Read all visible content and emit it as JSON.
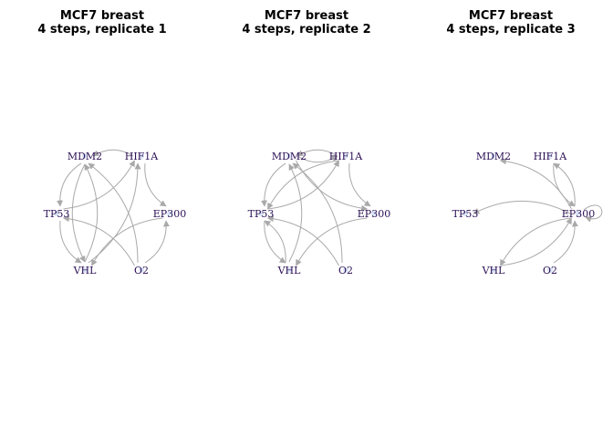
{
  "colors": {
    "edge": "#a9a9a9",
    "arrow": "#a9a9a9",
    "label": "#2b1055",
    "node": "#b8ccf0"
  },
  "panels": [
    {
      "title_line1": "MCF7 breast",
      "title_line2": "4 steps, replicate 1",
      "edges": [
        [
          "HIF1A",
          "MDM2"
        ],
        [
          "O2",
          "MDM2"
        ],
        [
          "VHL",
          "MDM2"
        ],
        [
          "HIF1A",
          "EP300"
        ],
        [
          "TP53",
          "HIF1A"
        ],
        [
          "VHL",
          "HIF1A"
        ],
        [
          "MDM2",
          "TP53"
        ],
        [
          "O2",
          "TP53"
        ],
        [
          "TP53",
          "VHL"
        ],
        [
          "MDM2",
          "VHL"
        ],
        [
          "EP300",
          "VHL"
        ],
        [
          "O2",
          "EP300"
        ]
      ]
    },
    {
      "title_line1": "MCF7 breast",
      "title_line2": "4 steps, replicate 2",
      "edges": [
        [
          "HIF1A",
          "MDM2"
        ],
        [
          "O2",
          "MDM2"
        ],
        [
          "VHL",
          "MDM2"
        ],
        [
          "TP53",
          "HIF1A"
        ],
        [
          "MDM2",
          "HIF1A"
        ],
        [
          "HIF1A",
          "EP300"
        ],
        [
          "MDM2",
          "EP300"
        ],
        [
          "HIF1A",
          "TP53"
        ],
        [
          "O2",
          "TP53"
        ],
        [
          "VHL",
          "TP53"
        ],
        [
          "MDM2",
          "TP53"
        ],
        [
          "TP53",
          "VHL"
        ],
        [
          "EP300",
          "VHL"
        ]
      ]
    },
    {
      "title_line1": "MCF7 breast",
      "title_line2": "4 steps, replicate 3",
      "edges": [
        [
          "EP300",
          "MDM2"
        ],
        [
          "EP300",
          "HIF1A"
        ],
        [
          "HIF1A",
          "EP300"
        ],
        [
          "EP300",
          "EP300"
        ],
        [
          "EP300",
          "TP53"
        ],
        [
          "VHL",
          "EP300"
        ],
        [
          "EP300",
          "VHL"
        ],
        [
          "O2",
          "EP300"
        ]
      ]
    }
  ],
  "nodes": [
    "MDM2",
    "HIF1A",
    "TP53",
    "EP300",
    "VHL",
    "O2"
  ]
}
